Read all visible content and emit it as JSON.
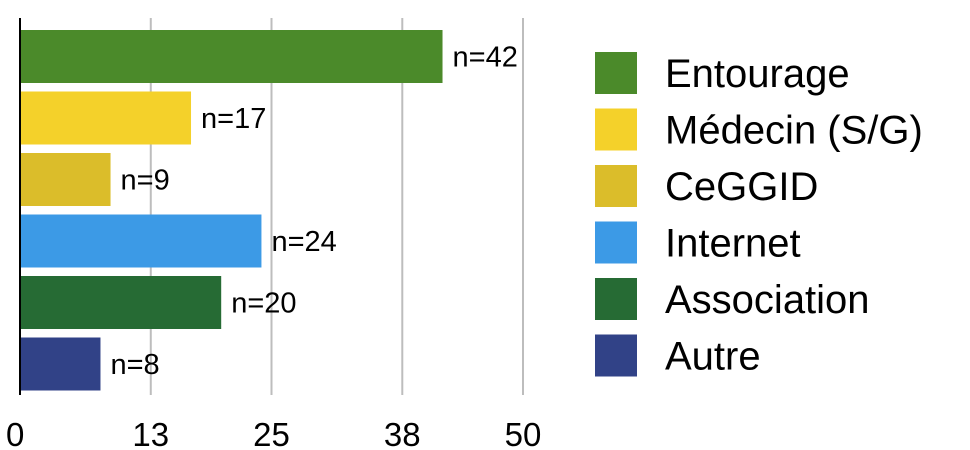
{
  "chart_data": {
    "type": "bar",
    "orientation": "horizontal",
    "categories": [
      "Entourage",
      "Médecin (S/G)",
      "CeGGID",
      "Internet",
      "Association",
      "Autre"
    ],
    "values": [
      42,
      17,
      9,
      24,
      20,
      8
    ],
    "data_labels": [
      "n=42",
      "n=17",
      "n=9",
      "n=24",
      "n=20",
      "n=8"
    ],
    "bar_colors": [
      "#4b8a2a",
      "#f4d12a",
      "#dbbd2a",
      "#3c9ae6",
      "#266b34",
      "#314287"
    ],
    "x_ticks": [
      0,
      13,
      25,
      38,
      50
    ],
    "x_tick_labels": [
      "0",
      "13",
      "25",
      "38",
      "50"
    ],
    "xlim": [
      0,
      50
    ],
    "grid": true,
    "legend": {
      "position": "right",
      "entries": [
        {
          "label": "Entourage",
          "color": "#4b8a2a"
        },
        {
          "label": "Médecin (S/G)",
          "color": "#f4d12a"
        },
        {
          "label": "CeGGID",
          "color": "#dbbd2a"
        },
        {
          "label": "Internet",
          "color": "#3c9ae6"
        },
        {
          "label": "Association",
          "color": "#266b34"
        },
        {
          "label": "Autre",
          "color": "#314287"
        }
      ]
    }
  }
}
